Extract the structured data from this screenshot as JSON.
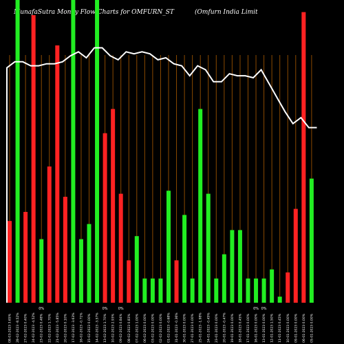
{
  "chart_data": {
    "type": "bar",
    "title": "MunafaSutra  Money Flow  Charts for OMFURN_ST",
    "subtitle": "(Omfurn  India  Limit",
    "colors": {
      "background": "#000000",
      "up": "#22ee22",
      "down": "#ff2222",
      "line": "#ffffff",
      "grid": "#8b4a00"
    },
    "bars": [
      {
        "label": "08-03-2023 3.65%",
        "value": 27,
        "color": "red"
      },
      {
        "label": "28-02-2023 -8.52%",
        "value": 100,
        "color": "green"
      },
      {
        "label": "27-02-2023 0.40%",
        "value": 30,
        "color": "red"
      },
      {
        "label": "24-02-2023 -4.52%",
        "value": 95,
        "color": "red"
      },
      {
        "label": "23-02-2023 0.48%",
        "value": 21,
        "color": "green"
      },
      {
        "label": "22-02-2023 1.70%",
        "value": 45,
        "color": "red"
      },
      {
        "label": "21-02-2023 -5.85%",
        "value": 85,
        "color": "red"
      },
      {
        "label": "20-02-2023 0.10%",
        "value": 35,
        "color": "red"
      },
      {
        "label": "17-02-2023 -3.63%",
        "value": 100,
        "color": "green"
      },
      {
        "label": "16-02-2023 -0.71%",
        "value": 21,
        "color": "green"
      },
      {
        "label": "15-02-2023 0.00%",
        "value": 26,
        "color": "green"
      },
      {
        "label": "14-02-2023 -3.57%",
        "value": 100,
        "color": "green"
      },
      {
        "label": "13-02-2023 1.70%",
        "value": 56,
        "color": "red"
      },
      {
        "label": "10-02-2023 2.93%",
        "value": 64,
        "color": "red"
      },
      {
        "label": "09-02-2023 0.84%",
        "value": 36,
        "color": "red"
      },
      {
        "label": "08-02-2023 0.83%",
        "value": 14,
        "color": "red"
      },
      {
        "label": "07-02-2023 1.00%",
        "value": 22,
        "color": "green"
      },
      {
        "label": "06-02-2023 0.00%",
        "value": 8,
        "color": "green"
      },
      {
        "label": "03-02-2023 0.00%",
        "value": 8,
        "color": "green"
      },
      {
        "label": "02-02-2023 0.00%",
        "value": 8,
        "color": "green"
      },
      {
        "label": "01-02-2023 -0.68%",
        "value": 37,
        "color": "green"
      },
      {
        "label": "31-01-2023 -0.36%",
        "value": 14,
        "color": "red"
      },
      {
        "label": "30-01-2023 0.00%",
        "value": 29,
        "color": "green"
      },
      {
        "label": "27-01-2023 0.00%",
        "value": 8,
        "color": "green"
      },
      {
        "label": "25-01-2023 -1.98%",
        "value": 64,
        "color": "green"
      },
      {
        "label": "24-01-2023 -0.45%",
        "value": 36,
        "color": "green"
      },
      {
        "label": "23-01-2023 0.00%",
        "value": 8,
        "color": "green"
      },
      {
        "label": "20-01-2023 -0.47%",
        "value": 16,
        "color": "green"
      },
      {
        "label": "19-01-2023 0.00%",
        "value": 24,
        "color": "green"
      },
      {
        "label": "18-01-2023 0.45%",
        "value": 24,
        "color": "green"
      },
      {
        "label": "17-01-2023 0.00%",
        "value": 8,
        "color": "green"
      },
      {
        "label": "16-01-2023 0.00%",
        "value": 8,
        "color": "green"
      },
      {
        "label": "13-01-2023 0.00%",
        "value": 8,
        "color": "green"
      },
      {
        "label": "12-01-2023 1.50%",
        "value": 11,
        "color": "green"
      },
      {
        "label": "11-01-2023 0.45%",
        "value": 2,
        "color": "green"
      },
      {
        "label": "10-01-2023 0.00%",
        "value": 10,
        "color": "red"
      },
      {
        "label": "09-01-2023 0.00%",
        "value": 31,
        "color": "red"
      },
      {
        "label": "06-01-2023 0.00%",
        "value": 96,
        "color": "red"
      },
      {
        "label": "05-01-2023 0.00%",
        "value": 41,
        "color": "green"
      }
    ],
    "price_line": [
      95,
      98,
      98,
      96,
      96,
      97,
      97,
      98,
      101,
      103,
      100,
      105,
      105,
      101,
      99,
      103,
      102,
      103,
      102,
      99,
      100,
      97,
      96,
      91,
      96,
      94,
      88,
      88,
      92,
      91,
      91,
      90,
      94,
      87,
      80,
      73,
      67,
      70,
      65,
      65
    ],
    "markers": [
      {
        "index": 4,
        "text": "0%"
      },
      {
        "index": 12,
        "text": "0%"
      },
      {
        "index": 14,
        "text": "0%"
      },
      {
        "index": 31,
        "text": "0%"
      },
      {
        "index": 32,
        "text": "0%"
      }
    ]
  }
}
